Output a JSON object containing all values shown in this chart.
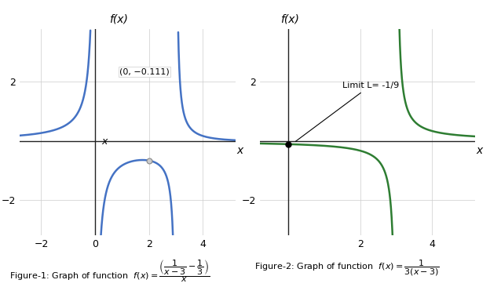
{
  "fig_width": 6.24,
  "fig_height": 3.66,
  "dpi": 100,
  "bg_color": "#ffffff",
  "plot1": {
    "xlim": [
      -2.8,
      5.2
    ],
    "ylim": [
      -3.2,
      3.8
    ],
    "xticks": [
      -2,
      0,
      2,
      4
    ],
    "yticks": [
      -2,
      2
    ],
    "xlabel": "x",
    "ylabel": "f(x)",
    "curve_color": "#4472c4",
    "curve_lw": 1.8,
    "title": "Figure-1: Graph of function",
    "formula": "$f(x) = \\dfrac{\\left(\\dfrac{1}{x-3} - \\dfrac{1}{3}\\right)}{x}$"
  },
  "plot2": {
    "xlim": [
      -0.8,
      5.2
    ],
    "ylim": [
      -3.2,
      3.8
    ],
    "xticks": [
      2,
      4
    ],
    "yticks": [
      -2,
      2
    ],
    "xlabel": "x",
    "ylabel": "f(x)",
    "curve_color": "#2e7d32",
    "curve_lw": 1.8,
    "point_x": 0,
    "point_y": -0.1111,
    "point_label": "(0, −0.111)",
    "limit_label": "Limit L= -1/9",
    "title": "Figure-2: Graph of function",
    "formula": "$f(x) = \\dfrac{1}{3(x-3)}$"
  },
  "grid_color": "#cccccc",
  "grid_lw": 0.5,
  "tick_fontsize": 9,
  "axis_color": "#222222"
}
